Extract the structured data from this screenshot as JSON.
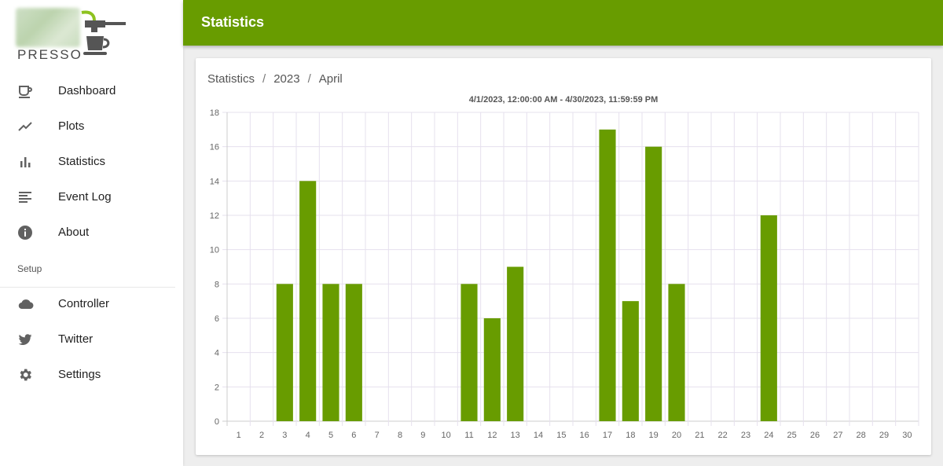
{
  "app": {
    "logo_text": "PRESSO"
  },
  "sidebar": {
    "items": [
      {
        "label": "Dashboard",
        "icon": "coffee-cup-icon"
      },
      {
        "label": "Plots",
        "icon": "trending-line-icon"
      },
      {
        "label": "Statistics",
        "icon": "bar-chart-icon"
      },
      {
        "label": "Event Log",
        "icon": "list-lines-icon"
      },
      {
        "label": "About",
        "icon": "info-icon"
      }
    ],
    "section_label": "Setup",
    "setup_items": [
      {
        "label": "Controller",
        "icon": "cloud-icon"
      },
      {
        "label": "Twitter",
        "icon": "twitter-icon"
      },
      {
        "label": "Settings",
        "icon": "gear-icon"
      }
    ]
  },
  "header": {
    "title": "Statistics"
  },
  "breadcrumb": {
    "items": [
      "Statistics",
      "2023",
      "April"
    ],
    "separator": "/"
  },
  "colors": {
    "accent": "#689c00",
    "bar": "#689c00",
    "grid": "#e6e0ee"
  },
  "chart_data": {
    "type": "bar",
    "title": "4/1/2023, 12:00:00 AM - 4/30/2023, 11:59:59 PM",
    "categories": [
      "1",
      "2",
      "3",
      "4",
      "5",
      "6",
      "7",
      "8",
      "9",
      "10",
      "11",
      "12",
      "13",
      "14",
      "15",
      "16",
      "17",
      "18",
      "19",
      "20",
      "21",
      "22",
      "23",
      "24",
      "25",
      "26",
      "27",
      "28",
      "29",
      "30"
    ],
    "values": [
      0,
      0,
      8,
      14,
      8,
      8,
      0,
      0,
      0,
      0,
      8,
      6,
      9,
      0,
      0,
      0,
      17,
      7,
      16,
      8,
      0,
      0,
      0,
      12,
      0,
      0,
      0,
      0,
      0,
      0
    ],
    "ylim": [
      0,
      18
    ],
    "yticks": [
      0,
      2,
      4,
      6,
      8,
      10,
      12,
      14,
      16,
      18
    ],
    "grid": true,
    "xlabel": "",
    "ylabel": ""
  }
}
